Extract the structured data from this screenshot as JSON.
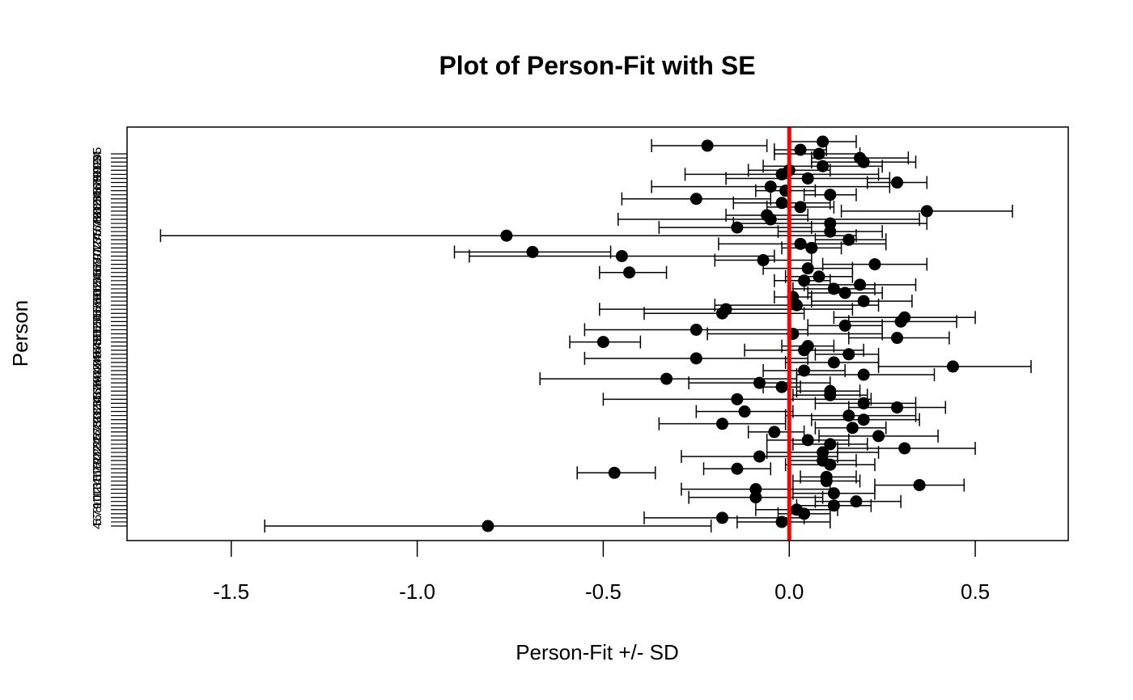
{
  "chart_data": {
    "type": "scatter",
    "title": "Plot of Person-Fit with SE",
    "xlabel": "Person-Fit +/- SD",
    "ylabel": "Person",
    "xlim": [
      -1.78,
      0.75
    ],
    "x_ticks": [
      -1.5,
      -1.0,
      -0.5,
      0.0,
      0.5
    ],
    "x_tick_labels": [
      "-1.5",
      "-1.0",
      "-0.5",
      "0.0",
      "0.5"
    ],
    "reference_line": {
      "x": 0.0,
      "color": "#ff0000"
    },
    "point_color": "#000000",
    "y_tick_labels": [
      "4",
      "5",
      "6",
      "7",
      "8",
      "9",
      "10",
      "11",
      "12",
      "13",
      "14",
      "15",
      "16",
      "17",
      "18",
      "19",
      "20",
      "21",
      "22",
      "23",
      "24",
      "25",
      "26",
      "27",
      "28",
      "29",
      "30",
      "31",
      "32",
      "33",
      "34",
      "35",
      "36",
      "37",
      "38",
      "39",
      "40",
      "41",
      "42",
      "43",
      "44",
      "45",
      "46",
      "47",
      "48",
      "49",
      "50",
      "51",
      "52",
      "53",
      "54",
      "55",
      "56",
      "57",
      "58",
      "59",
      "60",
      "61",
      "62",
      "63",
      "64",
      "65",
      "66",
      "67",
      "68",
      "69",
      "70",
      "71",
      "72",
      "73",
      "74",
      "75",
      "76",
      "77",
      "78",
      "79",
      "80",
      "81",
      "82",
      "83",
      "84",
      "85",
      "86",
      "87",
      "88",
      "89",
      "90",
      "91",
      "92",
      "93",
      "94",
      "95"
    ],
    "points": [
      {
        "x": -0.81,
        "lo": -1.41,
        "hi": -0.21
      },
      {
        "x": -0.02,
        "lo": -0.14,
        "hi": 0.11
      },
      {
        "x": -0.18,
        "lo": -0.39,
        "hi": 0.04
      },
      {
        "x": 0.04,
        "lo": -0.03,
        "hi": 0.11
      },
      {
        "x": 0.02,
        "lo": -0.09,
        "hi": 0.13
      },
      {
        "x": 0.12,
        "lo": 0.02,
        "hi": 0.22
      },
      {
        "x": 0.18,
        "lo": 0.07,
        "hi": 0.3
      },
      {
        "x": -0.09,
        "lo": -0.27,
        "hi": 0.09
      },
      {
        "x": 0.12,
        "lo": 0.01,
        "hi": 0.23
      },
      {
        "x": -0.09,
        "lo": -0.29,
        "hi": 0.11
      },
      {
        "x": 0.35,
        "lo": 0.23,
        "hi": 0.47
      },
      {
        "x": 0.1,
        "lo": 0.01,
        "hi": 0.19
      },
      {
        "x": 0.1,
        "lo": 0.03,
        "hi": 0.18
      },
      {
        "x": -0.47,
        "lo": -0.57,
        "hi": -0.36
      },
      {
        "x": -0.14,
        "lo": -0.23,
        "hi": -0.05
      },
      {
        "x": 0.11,
        "lo": -0.01,
        "hi": 0.23
      },
      {
        "x": 0.09,
        "lo": 0.0,
        "hi": 0.18
      },
      {
        "x": -0.08,
        "lo": -0.29,
        "hi": 0.13
      },
      {
        "x": 0.09,
        "lo": -0.06,
        "hi": 0.24
      },
      {
        "x": 0.31,
        "lo": 0.13,
        "hi": 0.5
      },
      {
        "x": 0.11,
        "lo": 0.01,
        "hi": 0.21
      },
      {
        "x": 0.05,
        "lo": -0.06,
        "hi": 0.16
      },
      {
        "x": 0.24,
        "lo": 0.08,
        "hi": 0.4
      },
      {
        "x": -0.04,
        "lo": -0.11,
        "hi": 0.04
      },
      {
        "x": 0.17,
        "lo": 0.07,
        "hi": 0.26
      },
      {
        "x": -0.18,
        "lo": -0.35,
        "hi": -0.01
      },
      {
        "x": 0.2,
        "lo": 0.06,
        "hi": 0.35
      },
      {
        "x": 0.16,
        "lo": -0.01,
        "hi": 0.34
      },
      {
        "x": -0.12,
        "lo": -0.25,
        "hi": 0.01
      },
      {
        "x": 0.29,
        "lo": 0.16,
        "hi": 0.42
      },
      {
        "x": 0.2,
        "lo": 0.07,
        "hi": 0.34
      },
      {
        "x": -0.14,
        "lo": -0.5,
        "hi": 0.22
      },
      {
        "x": 0.11,
        "lo": 0.01,
        "hi": 0.21
      },
      {
        "x": 0.11,
        "lo": 0.02,
        "hi": 0.19
      },
      {
        "x": -0.02,
        "lo": -0.07,
        "hi": 0.03
      },
      {
        "x": -0.08,
        "lo": -0.27,
        "hi": 0.11
      },
      {
        "x": -0.33,
        "lo": -0.67,
        "hi": 0.02
      },
      {
        "x": 0.2,
        "lo": 0.02,
        "hi": 0.39
      },
      {
        "x": 0.04,
        "lo": -0.07,
        "hi": 0.15
      },
      {
        "x": 0.44,
        "lo": 0.24,
        "hi": 0.65
      },
      {
        "x": 0.12,
        "lo": -0.01,
        "hi": 0.24
      },
      {
        "x": -0.25,
        "lo": -0.55,
        "hi": 0.05
      },
      {
        "x": 0.16,
        "lo": 0.07,
        "hi": 0.24
      },
      {
        "x": 0.04,
        "lo": -0.12,
        "hi": 0.2
      },
      {
        "x": 0.05,
        "lo": -0.02,
        "hi": 0.12
      },
      {
        "x": -0.5,
        "lo": -0.59,
        "hi": -0.4
      },
      {
        "x": 0.29,
        "lo": 0.16,
        "hi": 0.43
      },
      {
        "x": 0.01,
        "lo": -0.22,
        "hi": 0.25
      },
      {
        "x": -0.25,
        "lo": -0.55,
        "hi": 0.05
      },
      {
        "x": 0.15,
        "lo": 0.05,
        "hi": 0.25
      },
      {
        "x": 0.3,
        "lo": 0.16,
        "hi": 0.45
      },
      {
        "x": 0.31,
        "lo": 0.12,
        "hi": 0.5
      },
      {
        "x": -0.18,
        "lo": -0.39,
        "hi": 0.04
      },
      {
        "x": -0.17,
        "lo": -0.51,
        "hi": 0.17
      },
      {
        "x": 0.02,
        "lo": -0.2,
        "hi": 0.24
      },
      {
        "x": 0.2,
        "lo": 0.06,
        "hi": 0.33
      },
      {
        "x": 0.01,
        "lo": -0.04,
        "hi": 0.06
      },
      {
        "x": 0.15,
        "lo": 0.05,
        "hi": 0.25
      },
      {
        "x": 0.12,
        "lo": 0.01,
        "hi": 0.23
      },
      {
        "x": 0.19,
        "lo": 0.04,
        "hi": 0.34
      },
      {
        "x": 0.04,
        "lo": -0.04,
        "hi": 0.11
      },
      {
        "x": 0.08,
        "lo": -0.01,
        "hi": 0.17
      },
      {
        "x": -0.43,
        "lo": -0.51,
        "hi": -0.33
      },
      {
        "x": 0.05,
        "lo": -0.07,
        "hi": 0.17
      },
      {
        "x": 0.23,
        "lo": 0.09,
        "hi": 0.37
      },
      {
        "x": -0.07,
        "lo": -0.2,
        "hi": 0.06
      },
      {
        "x": -0.45,
        "lo": -0.86,
        "hi": -0.04
      },
      {
        "x": -0.69,
        "lo": -0.9,
        "hi": -0.48
      },
      {
        "x": 0.06,
        "lo": -0.02,
        "hi": 0.14
      },
      {
        "x": 0.03,
        "lo": -0.19,
        "hi": 0.26
      },
      {
        "x": 0.16,
        "lo": 0.07,
        "hi": 0.26
      },
      {
        "x": -0.76,
        "lo": -1.69,
        "hi": 0.18
      },
      {
        "x": 0.11,
        "lo": -0.03,
        "hi": 0.25
      },
      {
        "x": -0.14,
        "lo": -0.35,
        "hi": 0.06
      },
      {
        "x": 0.11,
        "lo": -0.15,
        "hi": 0.37
      },
      {
        "x": -0.05,
        "lo": -0.46,
        "hi": 0.35
      },
      {
        "x": -0.06,
        "lo": -0.17,
        "hi": 0.05
      },
      {
        "x": 0.37,
        "lo": 0.14,
        "hi": 0.6
      },
      {
        "x": 0.03,
        "lo": -0.06,
        "hi": 0.12
      },
      {
        "x": -0.02,
        "lo": -0.15,
        "hi": 0.11
      },
      {
        "x": -0.25,
        "lo": -0.45,
        "hi": -0.05
      },
      {
        "x": 0.11,
        "lo": 0.04,
        "hi": 0.18
      },
      {
        "x": -0.01,
        "lo": -0.09,
        "hi": 0.07
      },
      {
        "x": -0.05,
        "lo": -0.37,
        "hi": 0.27
      },
      {
        "x": 0.29,
        "lo": 0.21,
        "hi": 0.37
      },
      {
        "x": 0.05,
        "lo": -0.17,
        "hi": 0.27
      },
      {
        "x": -0.02,
        "lo": -0.28,
        "hi": 0.24
      },
      {
        "x": 0.0,
        "lo": -0.11,
        "hi": 0.11
      },
      {
        "x": 0.09,
        "lo": -0.07,
        "hi": 0.25
      },
      {
        "x": 0.2,
        "lo": 0.06,
        "hi": 0.34
      },
      {
        "x": 0.19,
        "lo": 0.06,
        "hi": 0.32
      },
      {
        "x": 0.08,
        "lo": -0.04,
        "hi": 0.19
      },
      {
        "x": 0.03,
        "lo": -0.04,
        "hi": 0.1
      },
      {
        "x": -0.22,
        "lo": -0.37,
        "hi": -0.06
      },
      {
        "x": 0.09,
        "lo": 0.0,
        "hi": 0.18
      }
    ]
  }
}
